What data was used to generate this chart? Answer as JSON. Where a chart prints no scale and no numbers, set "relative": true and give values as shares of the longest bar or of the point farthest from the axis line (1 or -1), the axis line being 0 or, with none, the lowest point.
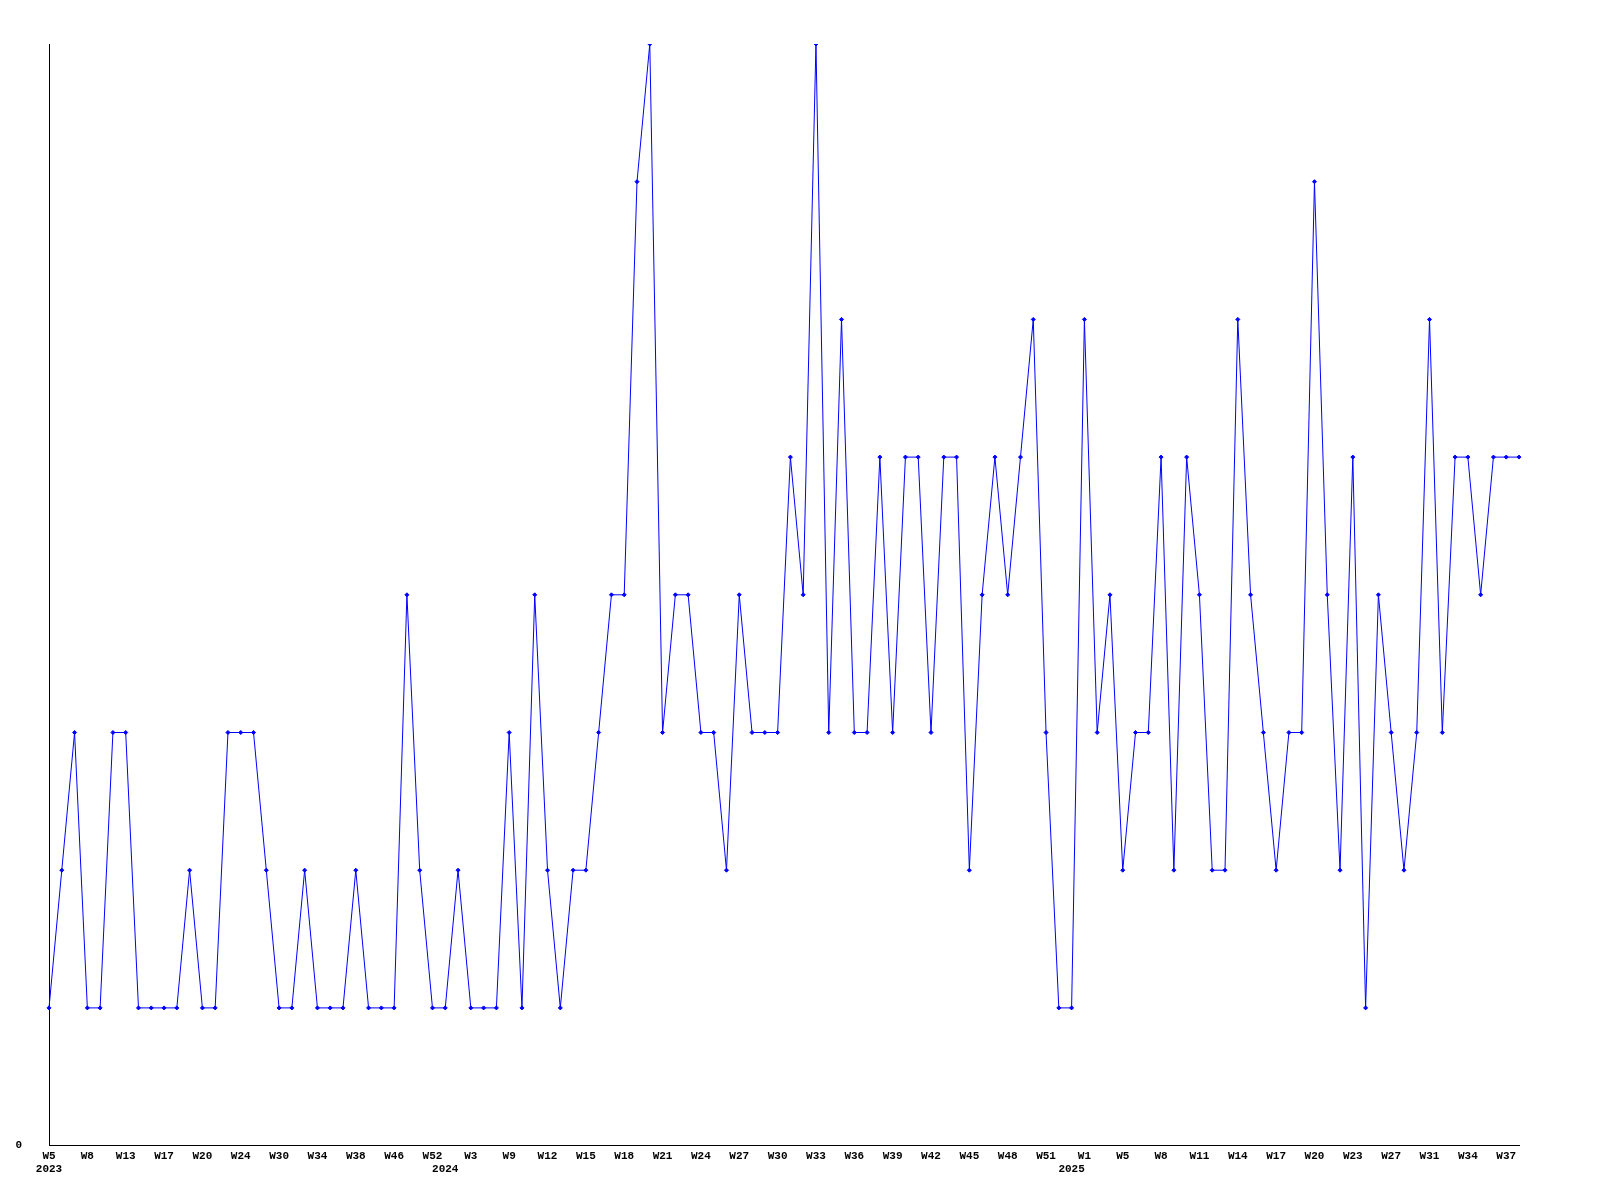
{
  "chart_data": {
    "type": "line",
    "relative": true,
    "marker": "diamond",
    "line_style": "solid",
    "grid": false,
    "legend": false,
    "categories": [
      "W5\n2023",
      null,
      null,
      "W8",
      null,
      null,
      "W13",
      null,
      null,
      "W17",
      null,
      null,
      "W20",
      null,
      null,
      "W24",
      null,
      null,
      "W30",
      null,
      null,
      "W34",
      null,
      null,
      "W38",
      null,
      null,
      "W46",
      null,
      null,
      "W52",
      "\n2024",
      null,
      "W3",
      null,
      null,
      "W9",
      null,
      null,
      "W12",
      null,
      null,
      "W15",
      null,
      null,
      "W18",
      null,
      null,
      "W21",
      null,
      null,
      "W24",
      null,
      null,
      "W27",
      null,
      null,
      "W30",
      null,
      null,
      "W33",
      null,
      null,
      "W36",
      null,
      null,
      "W39",
      null,
      null,
      "W42",
      null,
      null,
      "W45",
      null,
      null,
      "W48",
      null,
      null,
      "W51",
      null,
      "\n2025",
      "W1",
      null,
      null,
      "W5",
      null,
      null,
      "W8",
      null,
      null,
      "W11",
      null,
      null,
      "W14",
      null,
      null,
      "W17",
      null,
      null,
      "W20",
      null,
      null,
      "W23",
      null,
      null,
      "W27",
      null,
      null,
      "W31",
      null,
      null,
      "W34",
      null,
      null,
      "W37",
      null
    ],
    "series": [
      {
        "color": "#0000ff",
        "values": [
          0.125,
          0.25,
          0.375,
          0.125,
          0.125,
          0.375,
          0.375,
          0.125,
          0.125,
          0.125,
          0.125,
          0.25,
          0.125,
          0.125,
          0.375,
          0.375,
          0.375,
          0.25,
          0.125,
          0.125,
          0.25,
          0.125,
          0.125,
          0.125,
          0.25,
          0.125,
          0.125,
          0.125,
          0.5,
          0.25,
          0.125,
          0.125,
          0.25,
          0.125,
          0.125,
          0.125,
          0.375,
          0.125,
          0.5,
          0.25,
          0.125,
          0.25,
          0.25,
          0.375,
          0.5,
          0.5,
          0.875,
          1,
          0.375,
          0.5,
          0.5,
          0.375,
          0.375,
          0.25,
          0.5,
          0.375,
          0.375,
          0.375,
          0.625,
          0.5,
          1,
          0.375,
          0.75,
          0.375,
          0.375,
          0.625,
          0.375,
          0.625,
          0.625,
          0.375,
          0.625,
          0.625,
          0.25,
          0.5,
          0.625,
          0.5,
          0.625,
          0.75,
          0.375,
          0.125,
          0.125,
          0.75,
          0.375,
          0.5,
          0.25,
          0.375,
          0.375,
          0.625,
          0.25,
          0.625,
          0.5,
          0.25,
          0.25,
          0.75,
          0.5,
          0.375,
          0.25,
          0.375,
          0.375,
          0.875,
          0.5,
          0.25,
          0.625,
          0.125,
          0.5,
          0.375,
          0.25,
          0.375,
          0.75,
          0.375,
          0.625,
          0.625,
          0.5,
          0.625,
          0.625,
          0.625
        ]
      }
    ],
    "annotations": [
      "0"
    ]
  }
}
